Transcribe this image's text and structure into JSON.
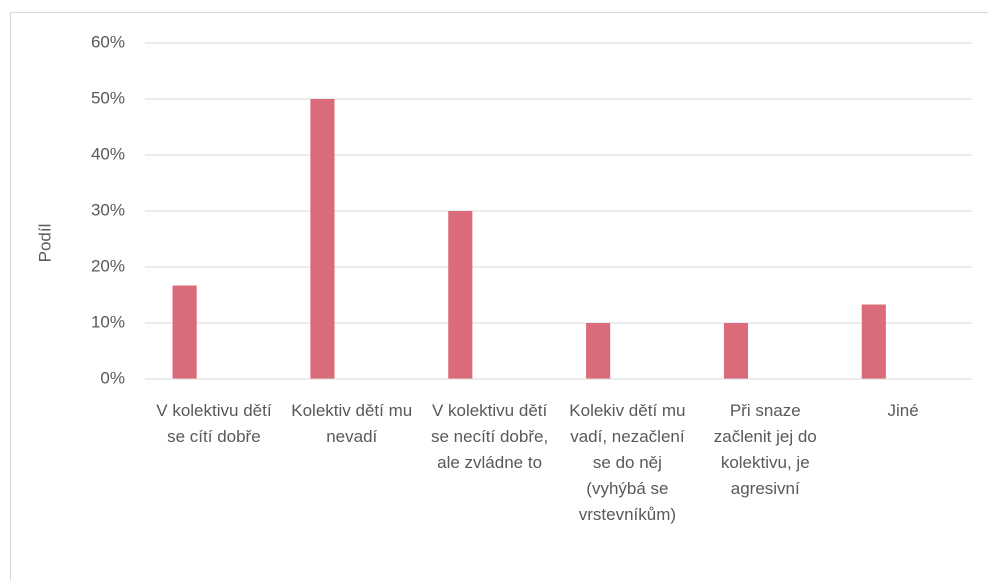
{
  "chart_data": {
    "type": "bar",
    "y_label": "Podíl",
    "categories": [
      "V kolektivu dětí se cítí dobře",
      "Kolektiv dětí mu nevadí",
      "V kolektivu dětí se necítí dobře, ale zvládne to",
      "Kolekiv dětí mu vadí, nezačlení se do něj (vyhýbá se vrstevníkům)",
      "Při snaze začlenit jej do kolektivu, je agresivní",
      "Jiné"
    ],
    "values": [
      16.7,
      50,
      30,
      10,
      10,
      13.3
    ],
    "color": "#d96b7b",
    "ylim": [
      0,
      60
    ],
    "yticks": [
      {
        "value": 0,
        "label": "0%"
      },
      {
        "value": 10,
        "label": "10%"
      },
      {
        "value": 20,
        "label": "20%"
      },
      {
        "value": 30,
        "label": "30%"
      },
      {
        "value": 40,
        "label": "40%"
      },
      {
        "value": 50,
        "label": "50%"
      },
      {
        "value": 60,
        "label": "60%"
      }
    ],
    "grid": true
  }
}
